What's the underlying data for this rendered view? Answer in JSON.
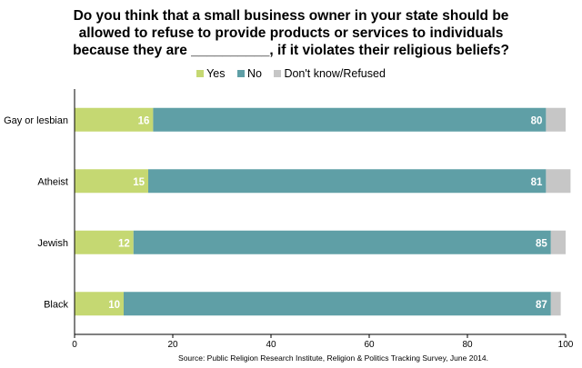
{
  "chart_data": {
    "type": "bar",
    "orientation": "horizontal",
    "stacked": true,
    "title_lines": [
      "Do you think that a small business owner in your state should be",
      "allowed to refuse to provide products or services to individuals",
      "because they are __________, if it violates their religious beliefs?"
    ],
    "categories": [
      "Gay or lesbian",
      "Atheist",
      "Jewish",
      "Black"
    ],
    "series": [
      {
        "name": "Yes",
        "color": "#c5d872",
        "values": [
          16,
          15,
          12,
          10
        ],
        "labels": [
          "16",
          "15",
          "12",
          "10"
        ]
      },
      {
        "name": "No",
        "color": "#5f9fa6",
        "values": [
          80,
          81,
          85,
          87
        ],
        "labels": [
          "80",
          "81",
          "85",
          "87"
        ]
      },
      {
        "name": "Don't know/Refused",
        "color": "#c6c6c6",
        "values": [
          4,
          5,
          3,
          2
        ],
        "labels": [
          "",
          "",
          "",
          ""
        ]
      }
    ],
    "xlim": [
      0,
      100
    ],
    "xticks": [
      "0",
      "20",
      "40",
      "60",
      "80",
      "100"
    ],
    "legend_position": "top-center",
    "grid": false,
    "source": "Source: Public Religion Research Institute, Religion & Politics Tracking Survey, June 2014."
  }
}
